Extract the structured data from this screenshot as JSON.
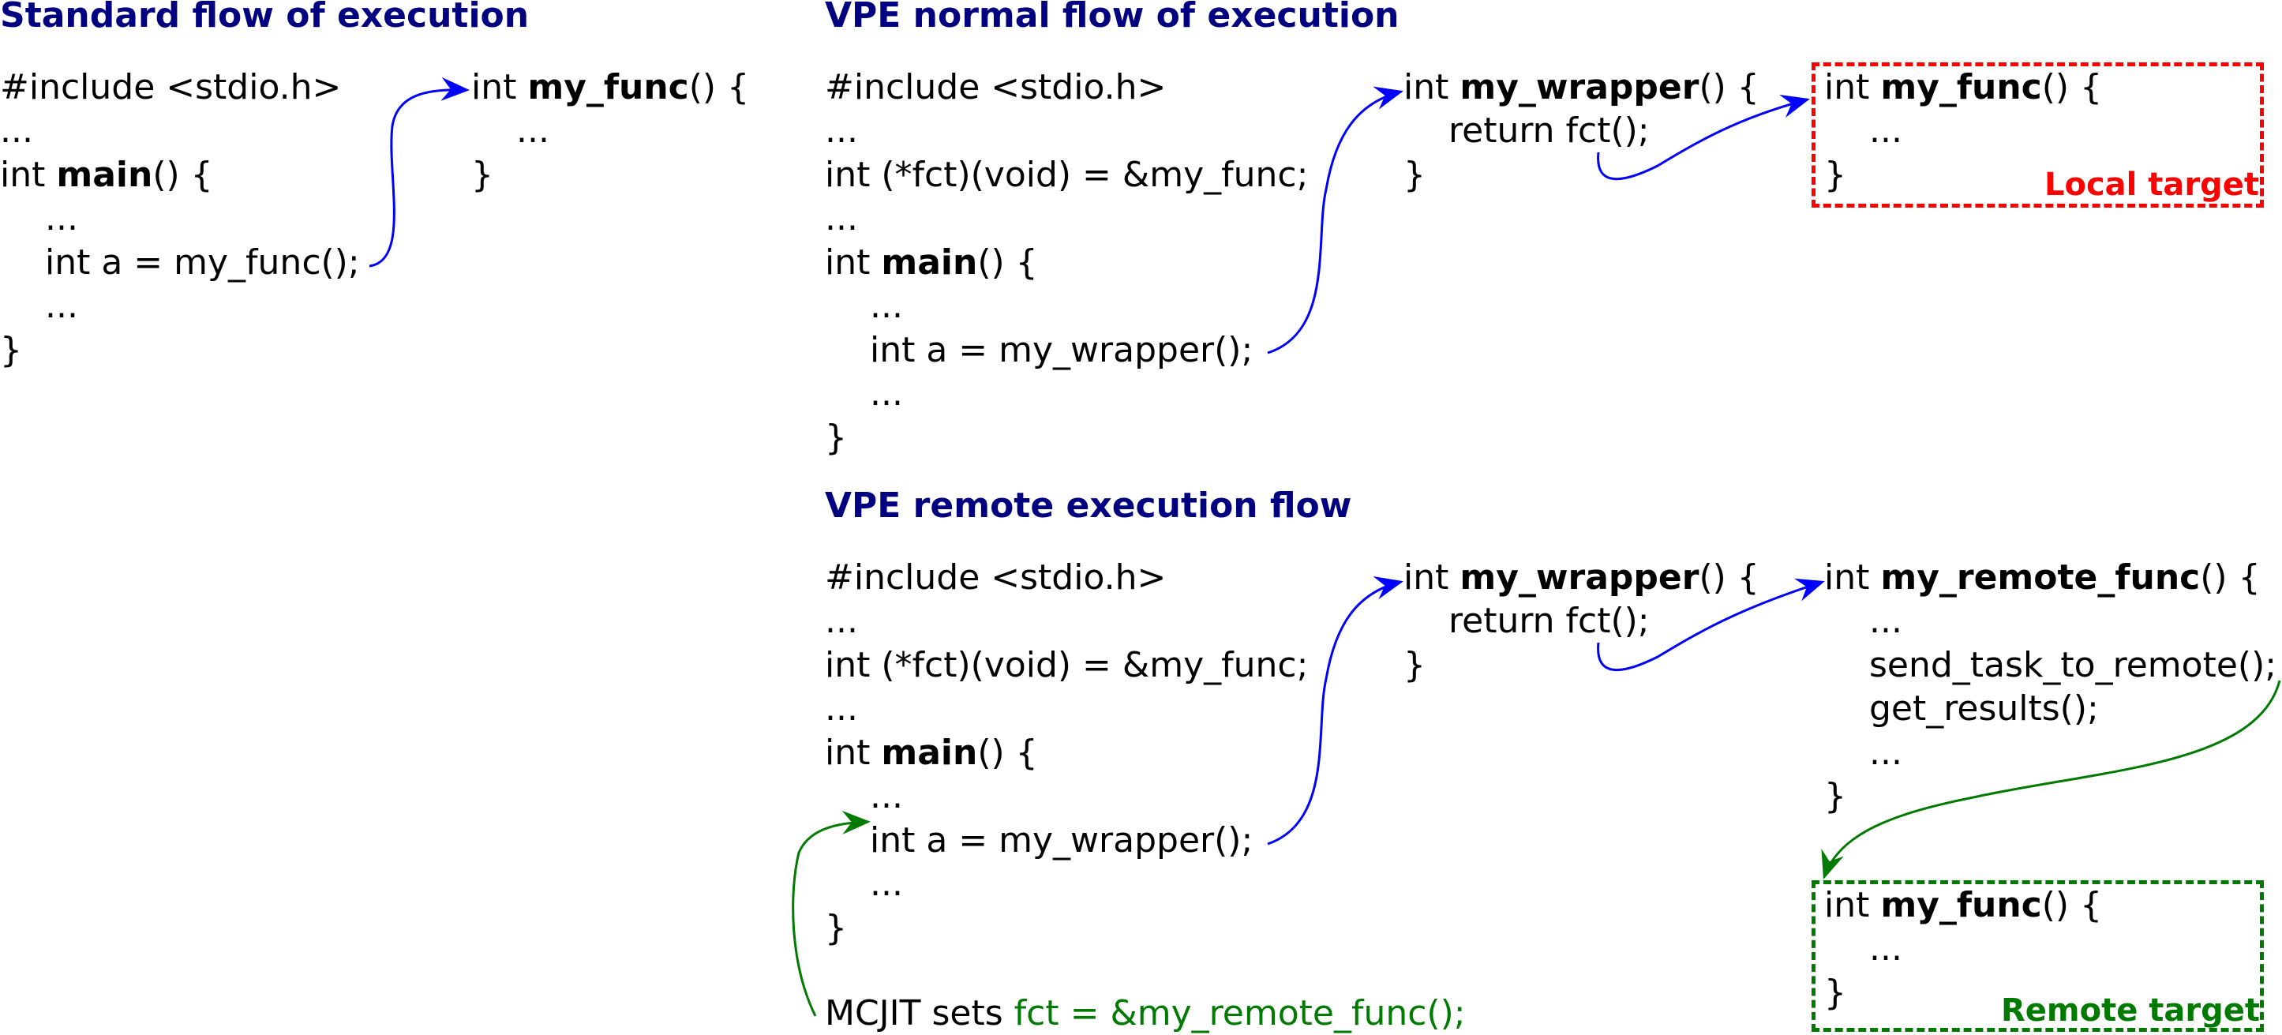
{
  "colors": {
    "title": "#000080",
    "flow_arrow": "#0000ff",
    "remote_arrow": "#007a00",
    "local_target": "#ff0000",
    "remote_target": "#007a00"
  },
  "panel_standard": {
    "title": "Standard flow of execution",
    "caller": {
      "l1": "#include <stdio.h>",
      "l2": "...",
      "l3_pre": "int ",
      "l3_bold": "main",
      "l3_post": "() {",
      "l4": "...",
      "l5": "int a = my_func();",
      "l6": "...",
      "l7": "}"
    },
    "callee": {
      "l1_pre": "int ",
      "l1_bold": "my_func",
      "l1_post": "() {",
      "l2": "...",
      "l3": "}"
    }
  },
  "panel_vpe_normal": {
    "title": "VPE normal flow of execution",
    "caller": {
      "l1": "#include <stdio.h>",
      "l2": "...",
      "l3": "int (*fct)(void) = &my_func;",
      "l4": "...",
      "l5_pre": "int ",
      "l5_bold": "main",
      "l5_post": "() {",
      "l6": "...",
      "l7": "int a = my_wrapper();",
      "l8": "...",
      "l9": "}"
    },
    "wrapper": {
      "l1_pre": "int ",
      "l1_bold": "my_wrapper",
      "l1_post": "() {",
      "l2": "return fct();",
      "l3": "}"
    },
    "target": {
      "l1_pre": "int ",
      "l1_bold": "my_func",
      "l1_post": "() {",
      "l2": "...",
      "l3": "}",
      "label": "Local target"
    }
  },
  "panel_vpe_remote": {
    "title": "VPE remote execution flow",
    "caller": {
      "l1": "#include <stdio.h>",
      "l2": "...",
      "l3": "int (*fct)(void) = &my_func;",
      "l4": "...",
      "l5_pre": "int ",
      "l5_bold": "main",
      "l5_post": "() {",
      "l6": "...",
      "l7": "int a = my_wrapper();",
      "l8": "...",
      "l9": "}"
    },
    "wrapper": {
      "l1_pre": "int ",
      "l1_bold": "my_wrapper",
      "l1_post": "() {",
      "l2": "return fct();",
      "l3": "}"
    },
    "remote_func": {
      "l1_pre": "int ",
      "l1_bold": "my_remote_func",
      "l1_post": "() {",
      "l2": "...",
      "l3": "send_task_to_remote();",
      "l4": "get_results();",
      "l5": "...",
      "l6": "}"
    },
    "target": {
      "l1_pre": "int ",
      "l1_bold": "my_func",
      "l1_post": "() {",
      "l2": "...",
      "l3": "}",
      "label": "Remote target"
    },
    "note": {
      "prefix": "MCJIT sets ",
      "code": "fct = &my_remote_func();"
    }
  }
}
